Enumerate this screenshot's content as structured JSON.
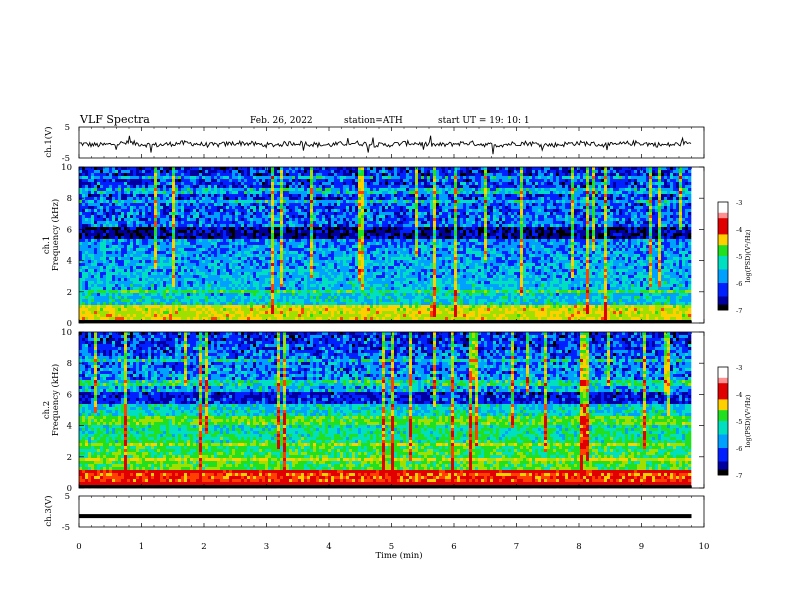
{
  "header": {
    "title": "VLF Spectra",
    "date": "Feb. 26, 2022",
    "station": "station=ATH",
    "start": "start UT =  19: 10: 1"
  },
  "chart_data": [
    {
      "type": "line",
      "ylabel": "ch.1(V)",
      "ylim": [
        -5,
        5
      ],
      "yticks": [
        "5",
        "-5"
      ],
      "xlim": [
        0,
        10
      ],
      "series": [
        {
          "values_description_free": true,
          "level": -0.5,
          "amplitude": 0.8
        }
      ]
    },
    {
      "type": "heatmap",
      "ylabel": "ch.1\nFrequency (kHz)",
      "ylabel_lines": [
        "ch.1",
        "Frequency (kHz)"
      ],
      "ylim": [
        0,
        10
      ],
      "yticks": [
        "0",
        "2",
        "4",
        "6",
        "8",
        "10"
      ],
      "xlim": [
        0,
        10
      ],
      "data_end_min": 9.8,
      "colorbar": {
        "label": "log(PSD)(V²/Hz)",
        "ticks": [
          "-3",
          "-4",
          "-5",
          "-6",
          "-7"
        ],
        "range": [
          -7,
          -3
        ]
      }
    },
    {
      "type": "heatmap",
      "ylabel": "ch.2\nFrequency (kHz)",
      "ylabel_lines": [
        "ch.2",
        "Frequency (kHz)"
      ],
      "ylim": [
        0,
        10
      ],
      "yticks": [
        "0",
        "2",
        "4",
        "6",
        "8",
        "10"
      ],
      "xlim": [
        0,
        10
      ],
      "data_end_min": 9.8,
      "colorbar": {
        "label": "log(PSD)(V²/Hz)",
        "ticks": [
          "-3",
          "-4",
          "-5",
          "-6",
          "-7"
        ],
        "range": [
          -7,
          -3
        ]
      }
    },
    {
      "type": "line",
      "ylabel": "ch.3(V)",
      "ylim": [
        -5,
        5
      ],
      "yticks": [
        "5",
        "-5"
      ],
      "xlim": [
        0,
        10
      ],
      "xlabel": "Time (min)",
      "xticks": [
        "0",
        "1",
        "2",
        "3",
        "4",
        "5",
        "6",
        "7",
        "8",
        "9",
        "10"
      ],
      "series": [
        {
          "level": -1.5
        }
      ]
    }
  ],
  "colors": {
    "colormap": [
      "#000000",
      "#0000a0",
      "#0020ff",
      "#00a0ff",
      "#00e0c0",
      "#20e020",
      "#a0e000",
      "#ffd000",
      "#ff4000",
      "#e00000",
      "#ffffff"
    ]
  }
}
